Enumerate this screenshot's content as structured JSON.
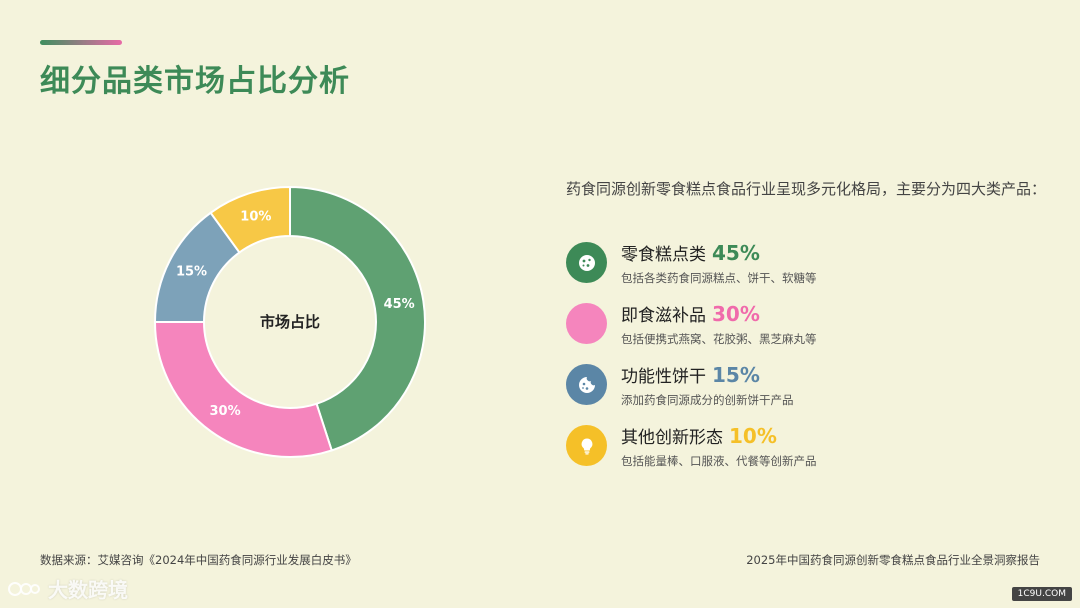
{
  "page": {
    "title": "细分品类市场占比分析",
    "intro": "药食同源创新零食糕点食品行业呈现多元化格局，主要分为四大类产品：",
    "source": "数据来源：艾媒咨询《2024年中国药食同源行业发展白皮书》",
    "report_title": "2025年中国药食同源创新零食糕点食品行业全景洞察报告",
    "watermark": "大数跨境",
    "site": "1C9U.COM"
  },
  "categories": [
    {
      "name": "零食糕点类",
      "pct_label": "45%",
      "desc": "包括各类药食同源糕点、饼干、软糖等",
      "color": "#5fa172",
      "icon_bg": "#3d8a57",
      "icon": "cookie-icon"
    },
    {
      "name": "即食滋补品",
      "pct_label": "30%",
      "desc": "包括便携式燕窝、花胶粥、黑芝麻丸等",
      "color": "#f585bd",
      "icon_bg": "#f585bd",
      "icon": "blank-icon"
    },
    {
      "name": "功能性饼干",
      "pct_label": "15%",
      "desc": "添加药食同源成分的创新饼干产品",
      "color": "#5b86a6",
      "icon_bg": "#5b86a6",
      "icon": "cookie-bite-icon"
    },
    {
      "name": "其他创新形态",
      "pct_label": "10%",
      "desc": "包括能量棒、口服液、代餐等创新产品",
      "color": "#f5c028",
      "icon_bg": "#f5c028",
      "icon": "lightbulb-icon"
    }
  ],
  "chart_data": {
    "type": "pie",
    "center_label": "市场占比",
    "categories": [
      "零食糕点类",
      "即食滋补品",
      "功能性饼干",
      "其他创新形态"
    ],
    "values": [
      45,
      30,
      15,
      10
    ],
    "data_labels": [
      "45%",
      "30%",
      "15%",
      "10%"
    ],
    "colors": [
      "#5fa172",
      "#f585bd",
      "#7da2b9",
      "#f7c846"
    ]
  }
}
